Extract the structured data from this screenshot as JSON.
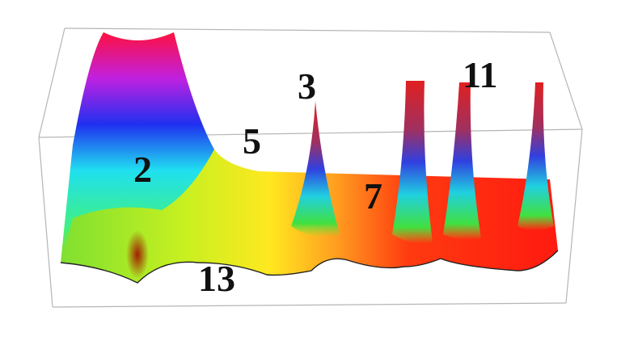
{
  "labels": [
    "2",
    "3",
    "5",
    "7",
    "11",
    "13"
  ]
}
